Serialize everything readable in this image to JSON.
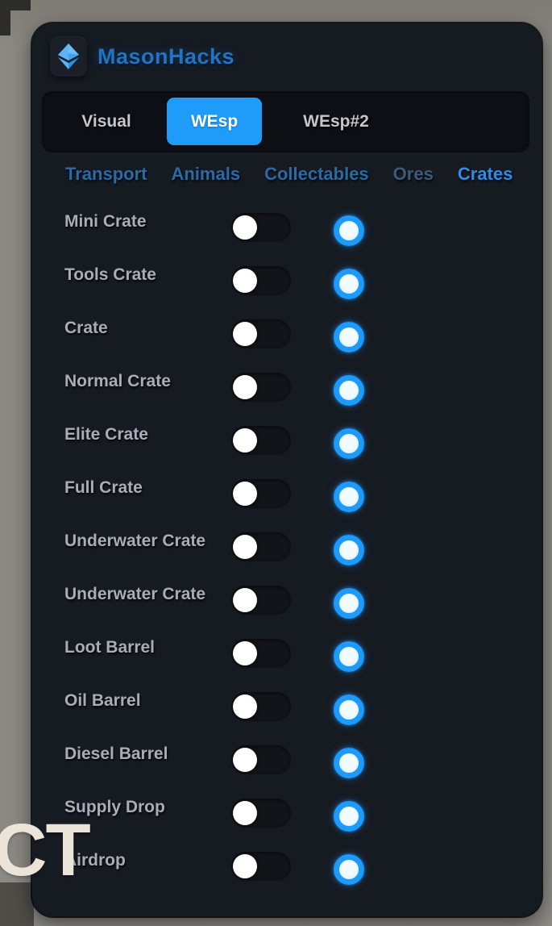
{
  "window": {
    "title": "MasonHacks",
    "logo_icon": "gem-icon"
  },
  "tabs": [
    {
      "label": "Visual",
      "active": false
    },
    {
      "label": "WEsp",
      "active": true
    },
    {
      "label": "WEsp#2",
      "active": false
    }
  ],
  "subtabs": [
    {
      "label": "Transport",
      "active": false,
      "dim": false
    },
    {
      "label": "Animals",
      "active": false,
      "dim": false
    },
    {
      "label": "Collectables",
      "active": false,
      "dim": false
    },
    {
      "label": "Ores",
      "active": false,
      "dim": true
    },
    {
      "label": "Crates",
      "active": true,
      "dim": false
    }
  ],
  "rows": [
    {
      "label": "Mini Crate",
      "enabled": false,
      "swatch_ring": "#1e9bfa",
      "swatch_fill": "#f2fbff"
    },
    {
      "label": "Tools Crate",
      "enabled": false,
      "swatch_ring": "#1e9bfa",
      "swatch_fill": "#f2fbff"
    },
    {
      "label": "Crate",
      "enabled": false,
      "swatch_ring": "#1e9bfa",
      "swatch_fill": "#f2fbff"
    },
    {
      "label": "Normal Crate",
      "enabled": false,
      "swatch_ring": "#1e9bfa",
      "swatch_fill": "#f2fbff"
    },
    {
      "label": "Elite Crate",
      "enabled": false,
      "swatch_ring": "#1e9bfa",
      "swatch_fill": "#f2fbff"
    },
    {
      "label": "Full Crate",
      "enabled": false,
      "swatch_ring": "#1e9bfa",
      "swatch_fill": "#f2fbff"
    },
    {
      "label": "Underwater Crate",
      "enabled": false,
      "swatch_ring": "#1e9bfa",
      "swatch_fill": "#f2fbff"
    },
    {
      "label": "Underwater Crate",
      "enabled": false,
      "swatch_ring": "#1e9bfa",
      "swatch_fill": "#f2fbff"
    },
    {
      "label": "Loot Barrel",
      "enabled": false,
      "swatch_ring": "#1e9bfa",
      "swatch_fill": "#f2fbff"
    },
    {
      "label": "Oil Barrel",
      "enabled": false,
      "swatch_ring": "#1e9bfa",
      "swatch_fill": "#f2fbff"
    },
    {
      "label": "Diesel Barrel",
      "enabled": false,
      "swatch_ring": "#1e9bfa",
      "swatch_fill": "#f2fbff"
    },
    {
      "label": "Supply Drop",
      "enabled": false,
      "swatch_ring": "#1e9bfa",
      "swatch_fill": "#f2fbff"
    },
    {
      "label": "Airdrop",
      "enabled": false,
      "swatch_ring": "#1e9bfa",
      "swatch_fill": "#f2fbff"
    }
  ],
  "background": {
    "partial_text": "CT"
  },
  "colors": {
    "accent_blue": "#1f9bfa",
    "panel_bg": "#161a21",
    "tabbar_bg": "#0c0f14",
    "subtab_inactive": "#2b6aa5",
    "subtab_dim": "#3d5a78",
    "subtab_active": "#2f8ce8",
    "label_gray": "#a8adb6",
    "title_blue": "#2174c4",
    "toggle_track": "#111419",
    "toggle_knob": "#ffffff"
  }
}
